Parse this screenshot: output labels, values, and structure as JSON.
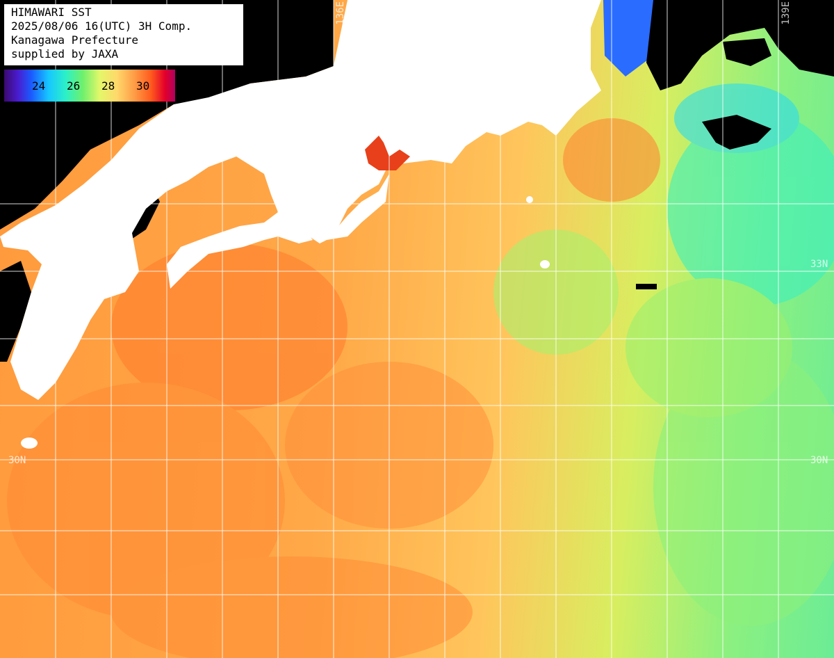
{
  "info": {
    "line1": "HIMAWARI SST",
    "line2": "2025/08/06 16(UTC) 3H Comp.",
    "line3": "Kanagawa Prefecture",
    "line4": "supplied by JAXA"
  },
  "colorbar": {
    "ticks": [
      "24",
      "26",
      "28",
      "30"
    ],
    "colors": [
      "#3a0a6e",
      "#1a5cff",
      "#17c7ff",
      "#6ff06c",
      "#ffd86b",
      "#ff9d47",
      "#e4002a",
      "#b00060"
    ]
  },
  "grid_labels": {
    "lon_136": "136E",
    "lon_139": "139E",
    "lat_33_right": "33N",
    "lat_30_left": "30N",
    "lat_30_right": "30N"
  },
  "colors": {
    "land": "#ffffff",
    "cloud": "#000000",
    "warm": "#ff9a3c",
    "hot": "#ff5020",
    "cool": "#7cf08c",
    "cold": "#1a5cff"
  }
}
